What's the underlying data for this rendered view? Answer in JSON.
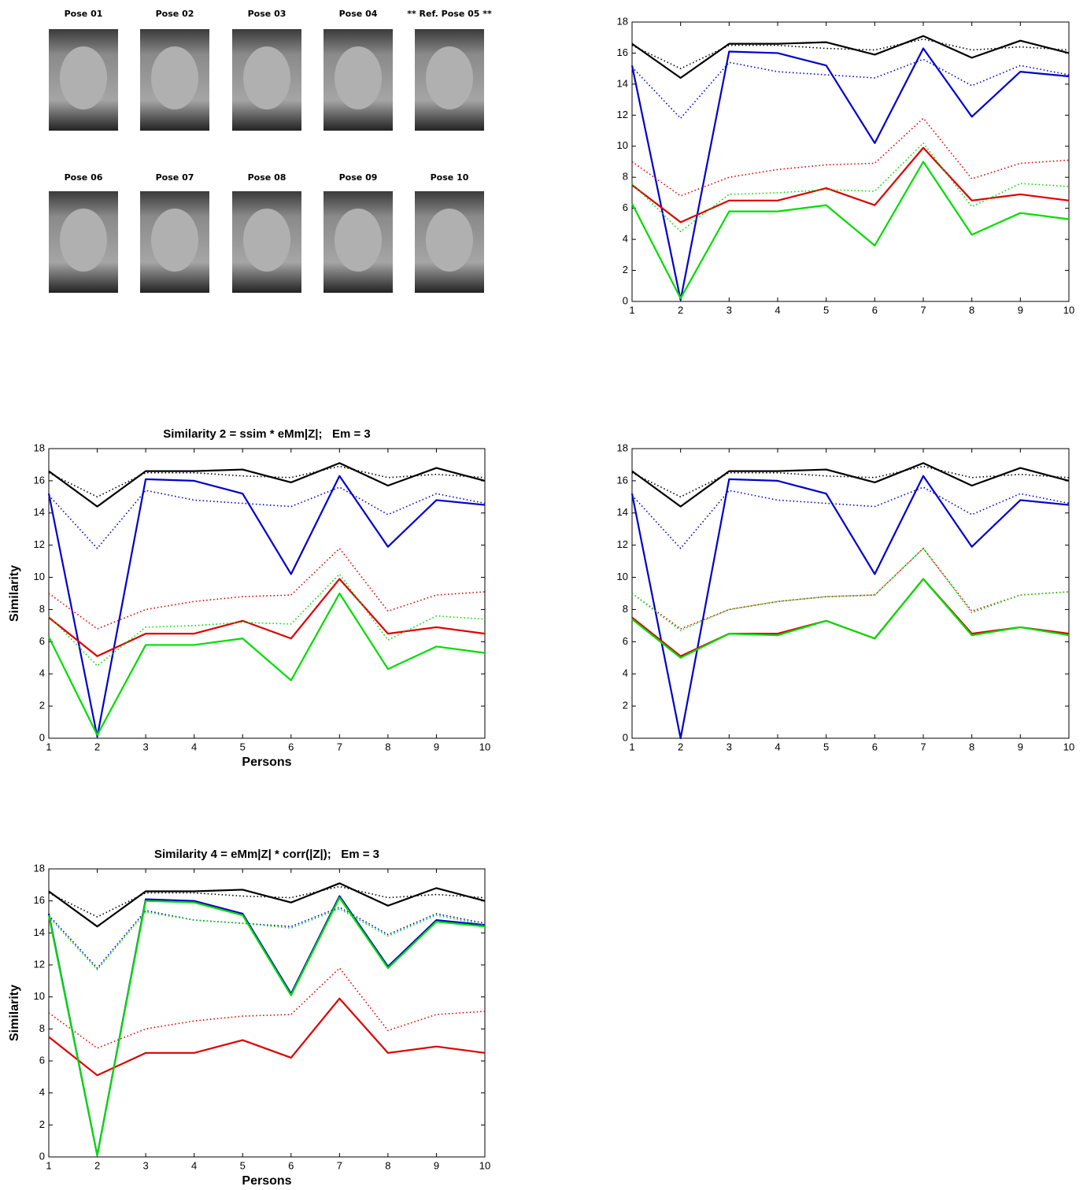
{
  "poses": [
    "Pose 01",
    "Pose 02",
    "Pose 03",
    "Pose 04",
    "** Ref. Pose 05 **",
    "Pose 06",
    "Pose 07",
    "Pose 08",
    "Pose 09",
    "Pose 10"
  ],
  "chart_data": [
    {
      "type": "line",
      "x": [
        1,
        2,
        3,
        4,
        5,
        6,
        7,
        8,
        9,
        10
      ],
      "xlim": [
        1,
        10
      ],
      "xticks": [
        1,
        2,
        3,
        4,
        5,
        6,
        7,
        8,
        9,
        10
      ],
      "ylim": [
        0,
        18
      ],
      "yticks": [
        0,
        2,
        4,
        6,
        8,
        10,
        12,
        14,
        16,
        18
      ],
      "series": [
        {
          "color": "#000000",
          "style": "dotted",
          "values": [
            16.5,
            15.0,
            16.5,
            16.5,
            16.3,
            16.2,
            16.9,
            16.2,
            16.4,
            16.2
          ]
        },
        {
          "color": "#000000",
          "style": "solid",
          "values": [
            16.6,
            14.4,
            16.6,
            16.6,
            16.7,
            15.9,
            17.1,
            15.7,
            16.8,
            16.0
          ]
        },
        {
          "color": "#0000cc",
          "style": "dotted",
          "values": [
            15.1,
            11.8,
            15.4,
            14.8,
            14.6,
            14.4,
            15.6,
            13.9,
            15.2,
            14.6
          ]
        },
        {
          "color": "#0000cc",
          "style": "solid",
          "values": [
            15.2,
            0.1,
            16.1,
            16.0,
            15.2,
            10.2,
            16.3,
            11.9,
            14.8,
            14.5
          ]
        },
        {
          "color": "#dd0000",
          "style": "dotted",
          "values": [
            9.0,
            6.8,
            8.0,
            8.5,
            8.8,
            8.9,
            11.8,
            7.9,
            8.9,
            9.1
          ]
        },
        {
          "color": "#dd0000",
          "style": "solid",
          "values": [
            7.5,
            5.1,
            6.5,
            6.5,
            7.3,
            6.2,
            9.9,
            6.5,
            6.9,
            6.5
          ]
        },
        {
          "color": "#00dd00",
          "style": "dotted",
          "values": [
            7.6,
            4.5,
            6.9,
            7.0,
            7.2,
            7.1,
            10.2,
            6.1,
            7.6,
            7.4
          ]
        },
        {
          "color": "#00dd00",
          "style": "solid",
          "values": [
            6.3,
            0.2,
            5.8,
            5.8,
            6.2,
            3.6,
            9.0,
            4.3,
            5.7,
            5.3
          ]
        }
      ]
    },
    {
      "type": "line",
      "title": "Similarity 2 = ssim * eMm|Z|;   Em = 3",
      "xlabel": "Persons",
      "ylabel": "Similarity",
      "x": [
        1,
        2,
        3,
        4,
        5,
        6,
        7,
        8,
        9,
        10
      ],
      "xlim": [
        1,
        10
      ],
      "xticks": [
        1,
        2,
        3,
        4,
        5,
        6,
        7,
        8,
        9,
        10
      ],
      "ylim": [
        0,
        18
      ],
      "yticks": [
        0,
        2,
        4,
        6,
        8,
        10,
        12,
        14,
        16,
        18
      ],
      "series": [
        {
          "color": "#000000",
          "style": "dotted",
          "values": [
            16.5,
            15.0,
            16.5,
            16.5,
            16.3,
            16.2,
            16.9,
            16.2,
            16.4,
            16.2
          ]
        },
        {
          "color": "#000000",
          "style": "solid",
          "values": [
            16.6,
            14.4,
            16.6,
            16.6,
            16.7,
            15.9,
            17.1,
            15.7,
            16.8,
            16.0
          ]
        },
        {
          "color": "#0000cc",
          "style": "dotted",
          "values": [
            15.1,
            11.8,
            15.4,
            14.8,
            14.6,
            14.4,
            15.6,
            13.9,
            15.2,
            14.6
          ]
        },
        {
          "color": "#0000cc",
          "style": "solid",
          "values": [
            15.2,
            0.1,
            16.1,
            16.0,
            15.2,
            10.2,
            16.3,
            11.9,
            14.8,
            14.5
          ]
        },
        {
          "color": "#dd0000",
          "style": "dotted",
          "values": [
            9.0,
            6.8,
            8.0,
            8.5,
            8.8,
            8.9,
            11.8,
            7.9,
            8.9,
            9.1
          ]
        },
        {
          "color": "#dd0000",
          "style": "solid",
          "values": [
            7.5,
            5.1,
            6.5,
            6.5,
            7.3,
            6.2,
            9.9,
            6.5,
            6.9,
            6.5
          ]
        },
        {
          "color": "#00dd00",
          "style": "dotted",
          "values": [
            7.6,
            4.5,
            6.9,
            7.0,
            7.2,
            7.1,
            10.2,
            6.1,
            7.6,
            7.4
          ]
        },
        {
          "color": "#00dd00",
          "style": "solid",
          "values": [
            6.3,
            0.2,
            5.8,
            5.8,
            6.2,
            3.6,
            9.0,
            4.3,
            5.7,
            5.3
          ]
        }
      ]
    },
    {
      "type": "line",
      "x": [
        1,
        2,
        3,
        4,
        5,
        6,
        7,
        8,
        9,
        10
      ],
      "xlim": [
        1,
        10
      ],
      "xticks": [
        1,
        2,
        3,
        4,
        5,
        6,
        7,
        8,
        9,
        10
      ],
      "ylim": [
        0,
        18
      ],
      "yticks": [
        0,
        2,
        4,
        6,
        8,
        10,
        12,
        14,
        16,
        18
      ],
      "series": [
        {
          "color": "#000000",
          "style": "dotted",
          "values": [
            16.5,
            15.0,
            16.5,
            16.5,
            16.3,
            16.2,
            16.9,
            16.2,
            16.4,
            16.2
          ]
        },
        {
          "color": "#000000",
          "style": "solid",
          "values": [
            16.6,
            14.4,
            16.6,
            16.6,
            16.7,
            15.9,
            17.1,
            15.7,
            16.8,
            16.0
          ]
        },
        {
          "color": "#0000cc",
          "style": "dotted",
          "values": [
            15.1,
            11.8,
            15.4,
            14.8,
            14.6,
            14.4,
            15.6,
            13.9,
            15.2,
            14.6
          ]
        },
        {
          "color": "#0000cc",
          "style": "solid",
          "values": [
            15.2,
            0.0,
            16.1,
            16.0,
            15.2,
            10.2,
            16.3,
            11.9,
            14.8,
            14.5
          ]
        },
        {
          "color": "#dd0000",
          "style": "dotted",
          "values": [
            9.0,
            6.8,
            8.0,
            8.5,
            8.8,
            8.9,
            11.8,
            7.9,
            8.9,
            9.1
          ]
        },
        {
          "color": "#dd0000",
          "style": "solid",
          "values": [
            7.5,
            5.1,
            6.5,
            6.5,
            7.3,
            6.2,
            9.9,
            6.5,
            6.9,
            6.5
          ]
        },
        {
          "color": "#00dd00",
          "style": "dotted",
          "values": [
            9.0,
            6.7,
            8.0,
            8.5,
            8.8,
            8.9,
            11.8,
            7.8,
            8.9,
            9.1
          ]
        },
        {
          "color": "#00dd00",
          "style": "solid",
          "values": [
            7.4,
            5.0,
            6.5,
            6.4,
            7.3,
            6.2,
            9.9,
            6.4,
            6.9,
            6.4
          ]
        }
      ]
    },
    {
      "type": "line",
      "title": "Similarity 4 = eMm|Z| * corr(|Z|);   Em = 3",
      "xlabel": "Persons",
      "ylabel": "Similarity",
      "x": [
        1,
        2,
        3,
        4,
        5,
        6,
        7,
        8,
        9,
        10
      ],
      "xlim": [
        1,
        10
      ],
      "xticks": [
        1,
        2,
        3,
        4,
        5,
        6,
        7,
        8,
        9,
        10
      ],
      "ylim": [
        0,
        18
      ],
      "yticks": [
        0,
        2,
        4,
        6,
        8,
        10,
        12,
        14,
        16,
        18
      ],
      "series": [
        {
          "color": "#000000",
          "style": "dotted",
          "values": [
            16.5,
            15.0,
            16.5,
            16.5,
            16.3,
            16.2,
            16.9,
            16.2,
            16.4,
            16.2
          ]
        },
        {
          "color": "#000000",
          "style": "solid",
          "values": [
            16.6,
            14.4,
            16.6,
            16.6,
            16.7,
            15.9,
            17.1,
            15.7,
            16.8,
            16.0
          ]
        },
        {
          "color": "#0000cc",
          "style": "dotted",
          "values": [
            15.1,
            11.8,
            15.4,
            14.8,
            14.6,
            14.4,
            15.6,
            13.9,
            15.2,
            14.6
          ]
        },
        {
          "color": "#0000cc",
          "style": "solid",
          "values": [
            15.2,
            0.1,
            16.1,
            16.0,
            15.2,
            10.2,
            16.3,
            11.9,
            14.8,
            14.5
          ]
        },
        {
          "color": "#dd0000",
          "style": "dotted",
          "values": [
            9.0,
            6.8,
            8.0,
            8.5,
            8.8,
            8.9,
            11.8,
            7.9,
            8.9,
            9.1
          ]
        },
        {
          "color": "#dd0000",
          "style": "solid",
          "values": [
            7.5,
            5.1,
            6.5,
            6.5,
            7.3,
            6.2,
            9.9,
            6.5,
            6.9,
            6.5
          ]
        },
        {
          "color": "#00dd00",
          "style": "dotted",
          "values": [
            15.0,
            11.7,
            15.3,
            14.8,
            14.6,
            14.3,
            15.5,
            13.8,
            15.1,
            14.5
          ]
        },
        {
          "color": "#00dd00",
          "style": "solid",
          "values": [
            15.1,
            0.1,
            16.0,
            15.9,
            15.1,
            10.1,
            16.2,
            11.8,
            14.7,
            14.4
          ]
        }
      ]
    }
  ]
}
